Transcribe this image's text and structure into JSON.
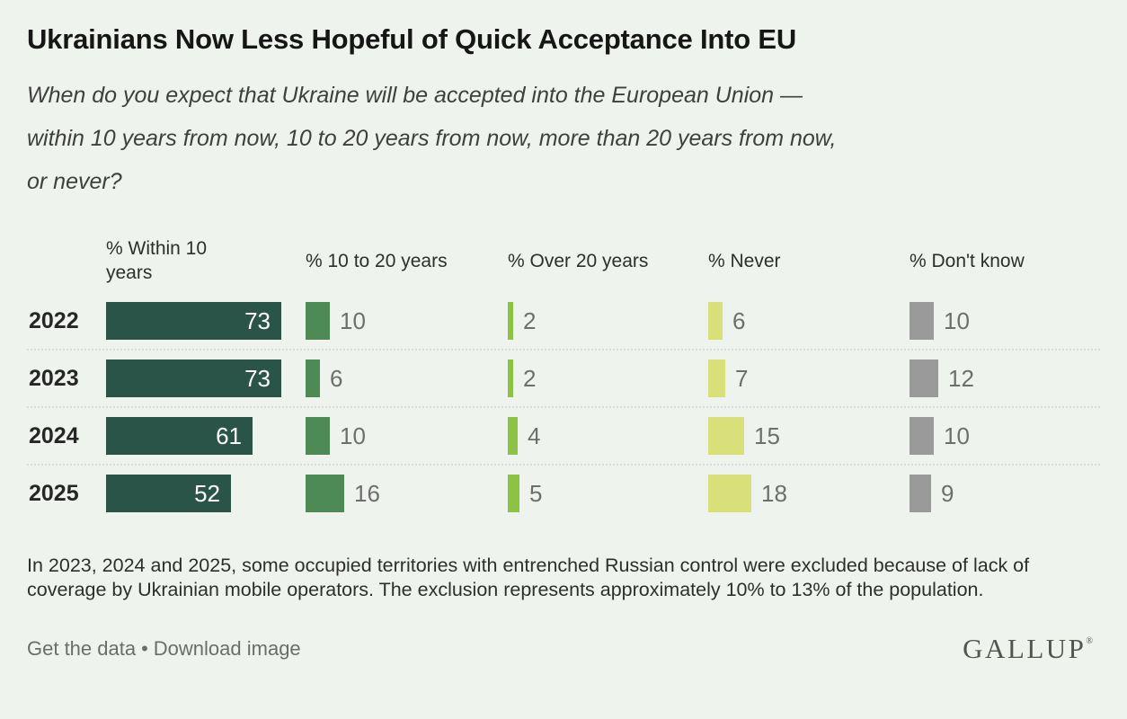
{
  "title": "Ukrainians Now Less Hopeful of Quick Acceptance Into EU",
  "subtitle": {
    "full": "When do you expect that Ukraine will be accepted into the European Union — within 10 years from now, 10 to 20 years from now, more than 20 years from now, or never?",
    "lines": [
      "When do you expect that Ukraine will be accepted into the European Union —",
      "within 10 years from now, 10 to 20 years from now, more than 20 years from now,",
      "or never?"
    ]
  },
  "chart_data": {
    "type": "bar",
    "orientation": "horizontal",
    "categories": [
      "2022",
      "2023",
      "2024",
      "2025"
    ],
    "series": [
      {
        "name": "% Within 10 years",
        "values": [
          73,
          73,
          61,
          52
        ],
        "color": "#2b5449",
        "label_position": "inside",
        "label_color": "#ffffff"
      },
      {
        "name": "% 10 to 20 years",
        "values": [
          10,
          6,
          10,
          16
        ],
        "color": "#4d8a56",
        "label_position": "outside",
        "label_color": "#6e6e6e"
      },
      {
        "name": "% Over 20 years",
        "values": [
          2,
          2,
          4,
          5
        ],
        "color": "#8dc342",
        "label_position": "outside",
        "label_color": "#6e6e6e"
      },
      {
        "name": "% Never",
        "values": [
          6,
          7,
          15,
          18
        ],
        "color": "#d8e07a",
        "label_position": "outside",
        "label_color": "#6e6e6e"
      },
      {
        "name": "% Don't know",
        "values": [
          10,
          12,
          10,
          9
        ],
        "color": "#9a9a9a",
        "label_position": "outside",
        "label_color": "#6e6e6e"
      }
    ],
    "value_format": "percent",
    "xlim": [
      0,
      84
    ],
    "grid": false,
    "legend_position": "column-headers"
  },
  "footnote": "In 2023, 2024 and 2025, some occupied territories with entrenched Russian control were excluded because of lack of coverage by Ukrainian mobile operators. The exclusion represents approximately 10% to 13% of the population.",
  "footer": {
    "get_data_label": "Get the data",
    "bullet": "•",
    "download_label": "Download image",
    "logo_text": "GALLUP",
    "logo_reg": "®"
  }
}
